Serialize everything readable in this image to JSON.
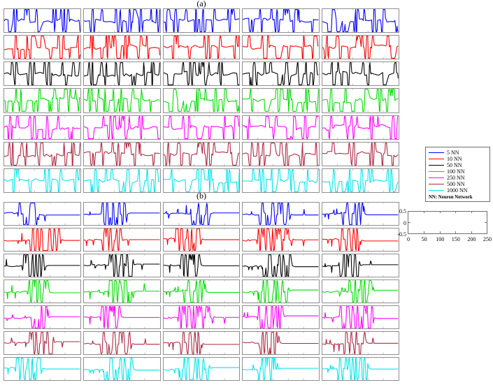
{
  "figure": {
    "panel_a_title": "(a)",
    "panel_b_title": "(b)"
  },
  "legend": {
    "entries": [
      {
        "label": "5 NN",
        "color": "#0000FF"
      },
      {
        "label": "10 NN",
        "color": "#FF0000"
      },
      {
        "label": "50 NN",
        "color": "#000000"
      },
      {
        "label": "100 NN",
        "color": "#00DD00"
      },
      {
        "label": "250 NN",
        "color": "#FF00FF"
      },
      {
        "label": "500 NN",
        "color": "#B02840"
      },
      {
        "label": "1000 NN",
        "color": "#00E5EE"
      }
    ],
    "footer": "NN: Neuron Network"
  },
  "reference_axes": {
    "x_tick_labels": [
      "0",
      "50",
      "100",
      "150",
      "200",
      "250"
    ],
    "y_tick_labels": [
      "0.5",
      "0",
      "-0.5"
    ],
    "x_range": [
      0,
      250
    ],
    "y_range": [
      -0.5,
      0.5
    ]
  },
  "chart_data": {
    "type": "line",
    "title": "",
    "xlabel": "",
    "ylabel": "",
    "x_range": [
      0,
      250
    ],
    "y_range": [
      -0.5,
      0.5
    ],
    "grid": "off",
    "legend_position": "right",
    "layout": "two stacked panels (a) and (b), each a 7-row by 5-column grid of small time-series subplots; one colored series per row, amplitudes clipped at y = -0.5 and 0.5",
    "rows_series": [
      {
        "name": "5 NN",
        "color": "#0000FF"
      },
      {
        "name": "10 NN",
        "color": "#FF0000"
      },
      {
        "name": "50 NN",
        "color": "#000000"
      },
      {
        "name": "100 NN",
        "color": "#00DD00"
      },
      {
        "name": "250 NN",
        "color": "#FF00FF"
      },
      {
        "name": "500 NN",
        "color": "#B02840"
      },
      {
        "name": "1000 NN",
        "color": "#00E5EE"
      }
    ],
    "panels": [
      {
        "id": "a",
        "label": "(a)",
        "cols": 5,
        "waveform_style": "dense-clipped-oscillation",
        "seeds": [
          [
            3,
            17,
            29,
            41,
            53
          ],
          [
            7,
            19,
            31,
            43,
            59
          ],
          [
            11,
            23,
            37,
            47,
            61
          ],
          [
            13,
            5,
            53,
            67,
            71
          ],
          [
            2,
            37,
            43,
            73,
            79
          ],
          [
            23,
            41,
            59,
            83,
            89
          ],
          [
            31,
            47,
            67,
            97,
            101
          ]
        ]
      },
      {
        "id": "b",
        "label": "(b)",
        "cols": 5,
        "waveform_style": "burst-then-flat-tail",
        "seeds": [
          [
            203,
            217,
            229,
            241,
            253
          ],
          [
            207,
            219,
            231,
            243,
            259
          ],
          [
            211,
            223,
            237,
            247,
            261
          ],
          [
            213,
            205,
            253,
            267,
            271
          ],
          [
            202,
            237,
            243,
            273,
            279
          ],
          [
            223,
            241,
            259,
            283,
            289
          ],
          [
            231,
            247,
            267,
            297,
            301
          ]
        ]
      }
    ]
  }
}
